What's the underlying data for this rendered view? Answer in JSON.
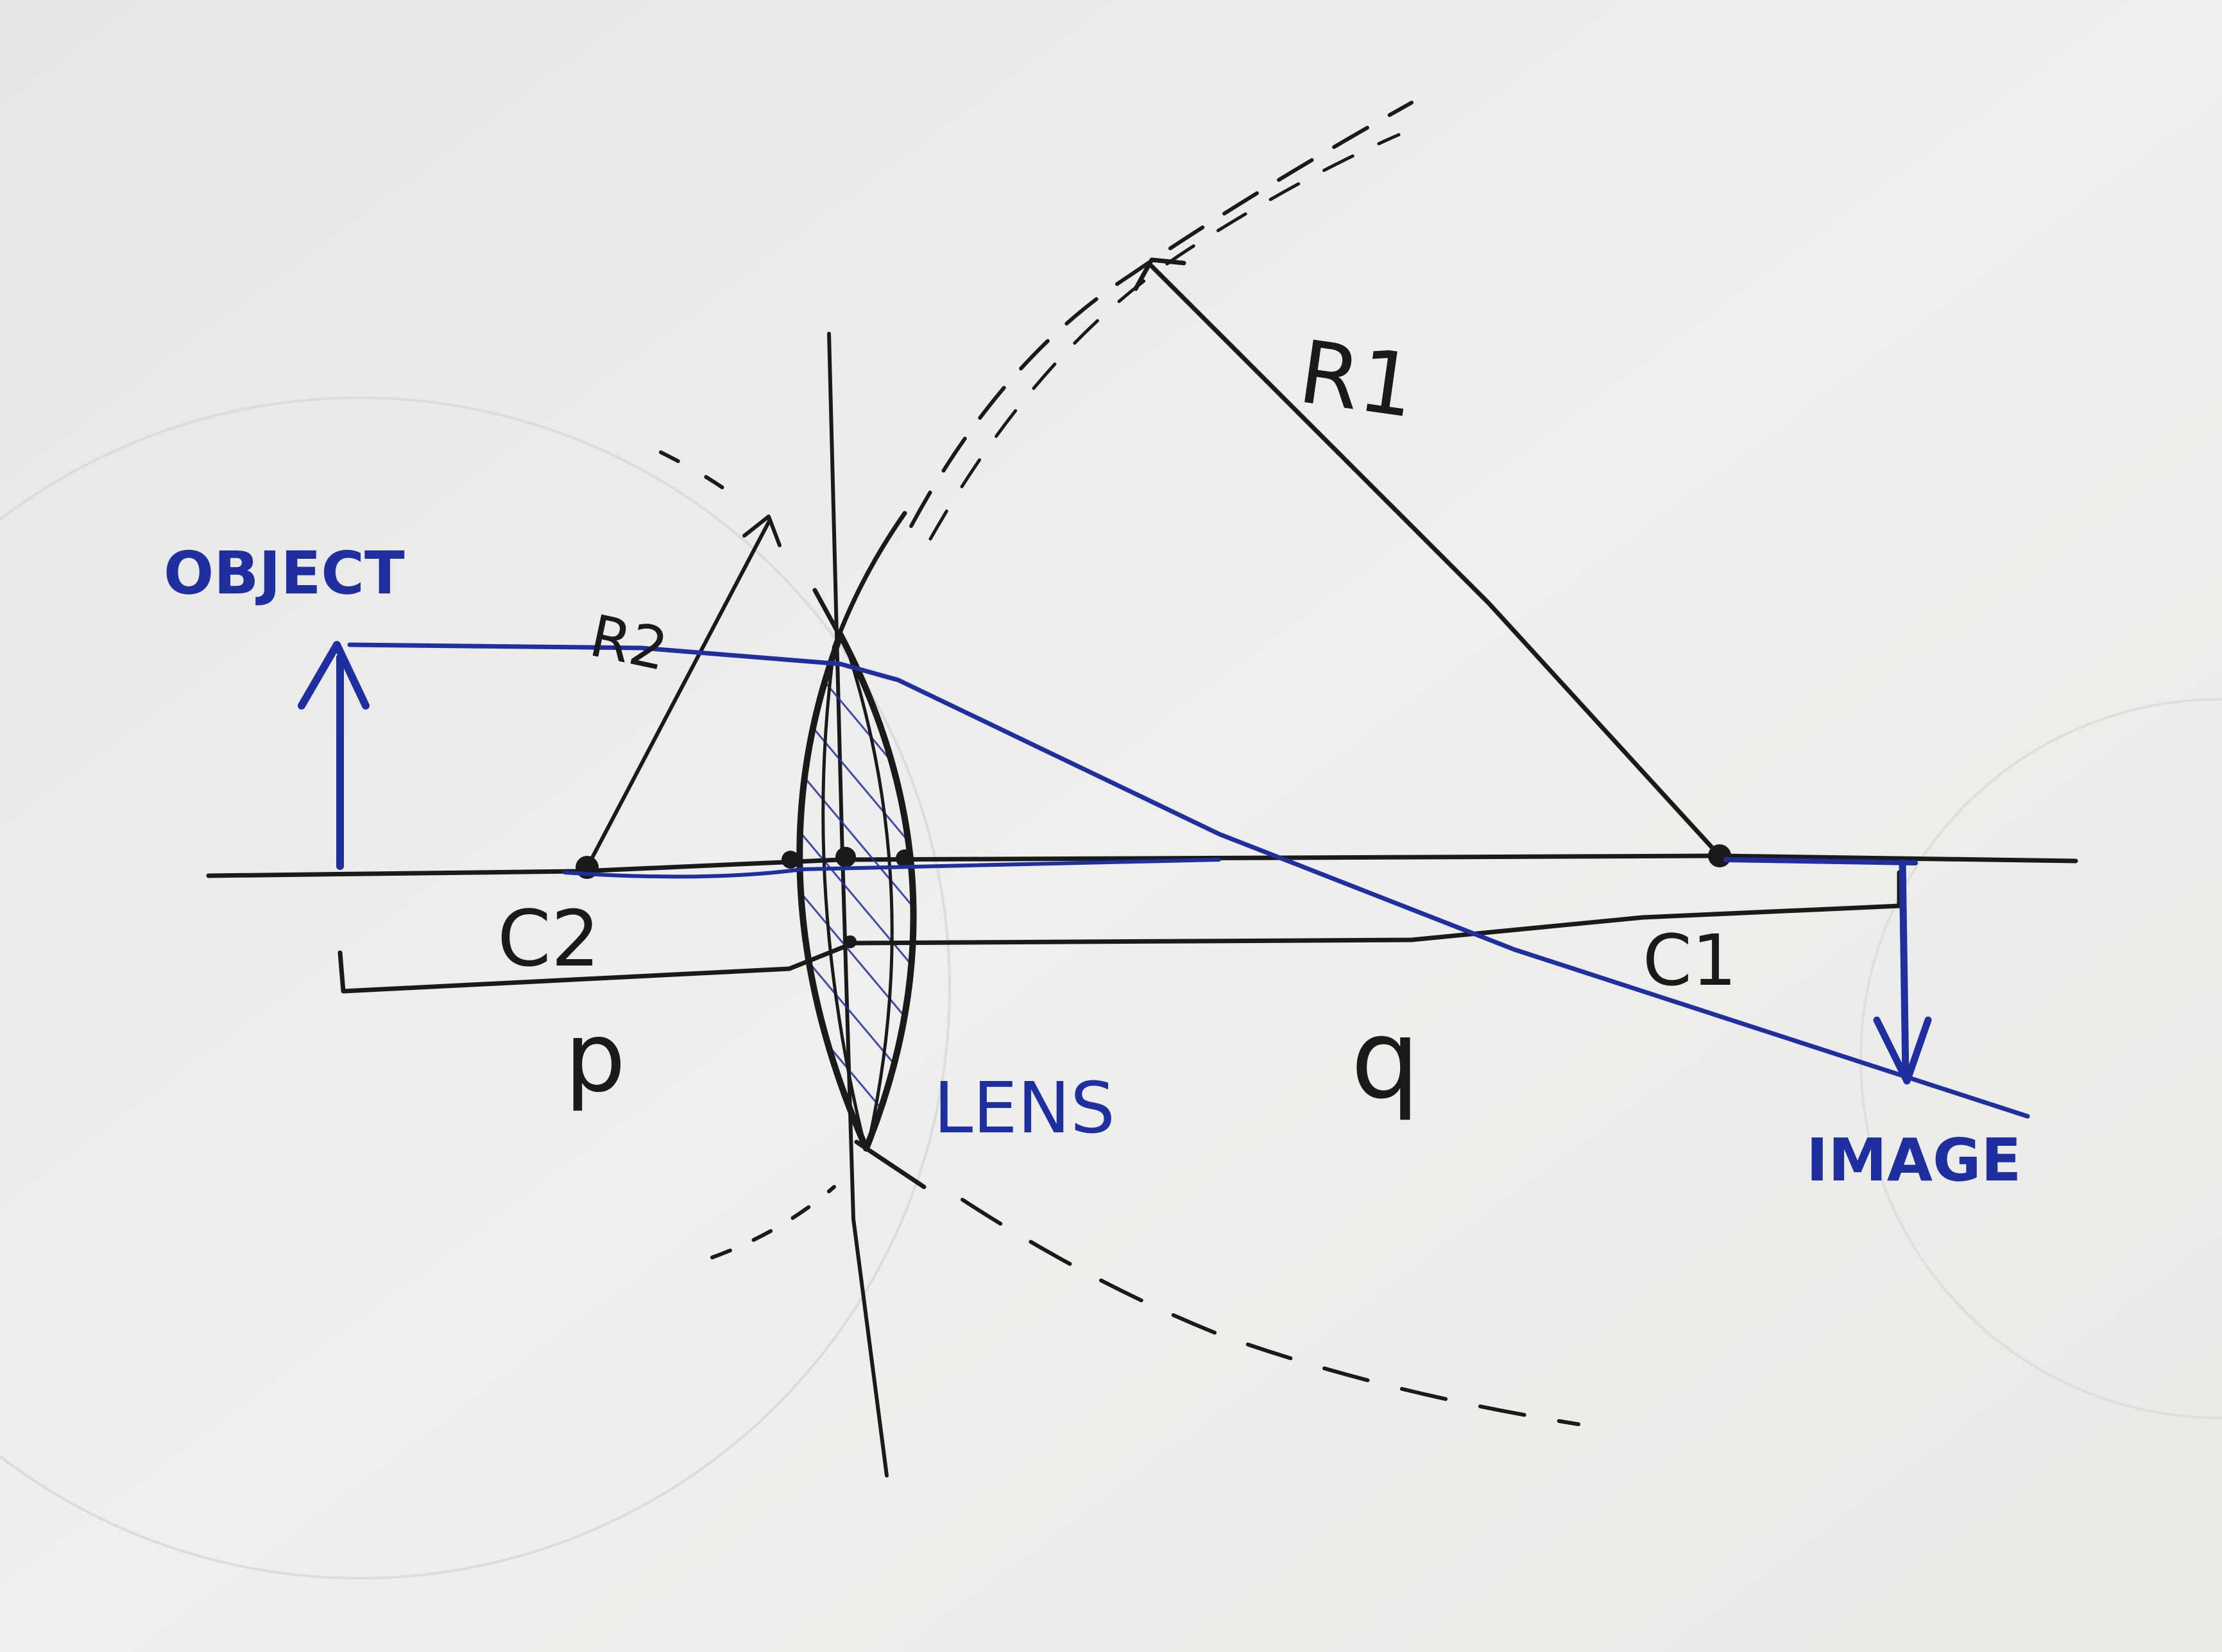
{
  "diagram": {
    "labels": {
      "object": "OBJECT",
      "image": "IMAGE",
      "lens": "LENS",
      "radius_1": "R1",
      "radius_2": "R2",
      "center_1": "C1",
      "center_2": "C2",
      "object_distance": "p",
      "image_distance": "q"
    },
    "colors": {
      "ink": "#1a1a1a",
      "pen_blue": "#1f2fa0",
      "paper": "#ebebe9"
    }
  }
}
